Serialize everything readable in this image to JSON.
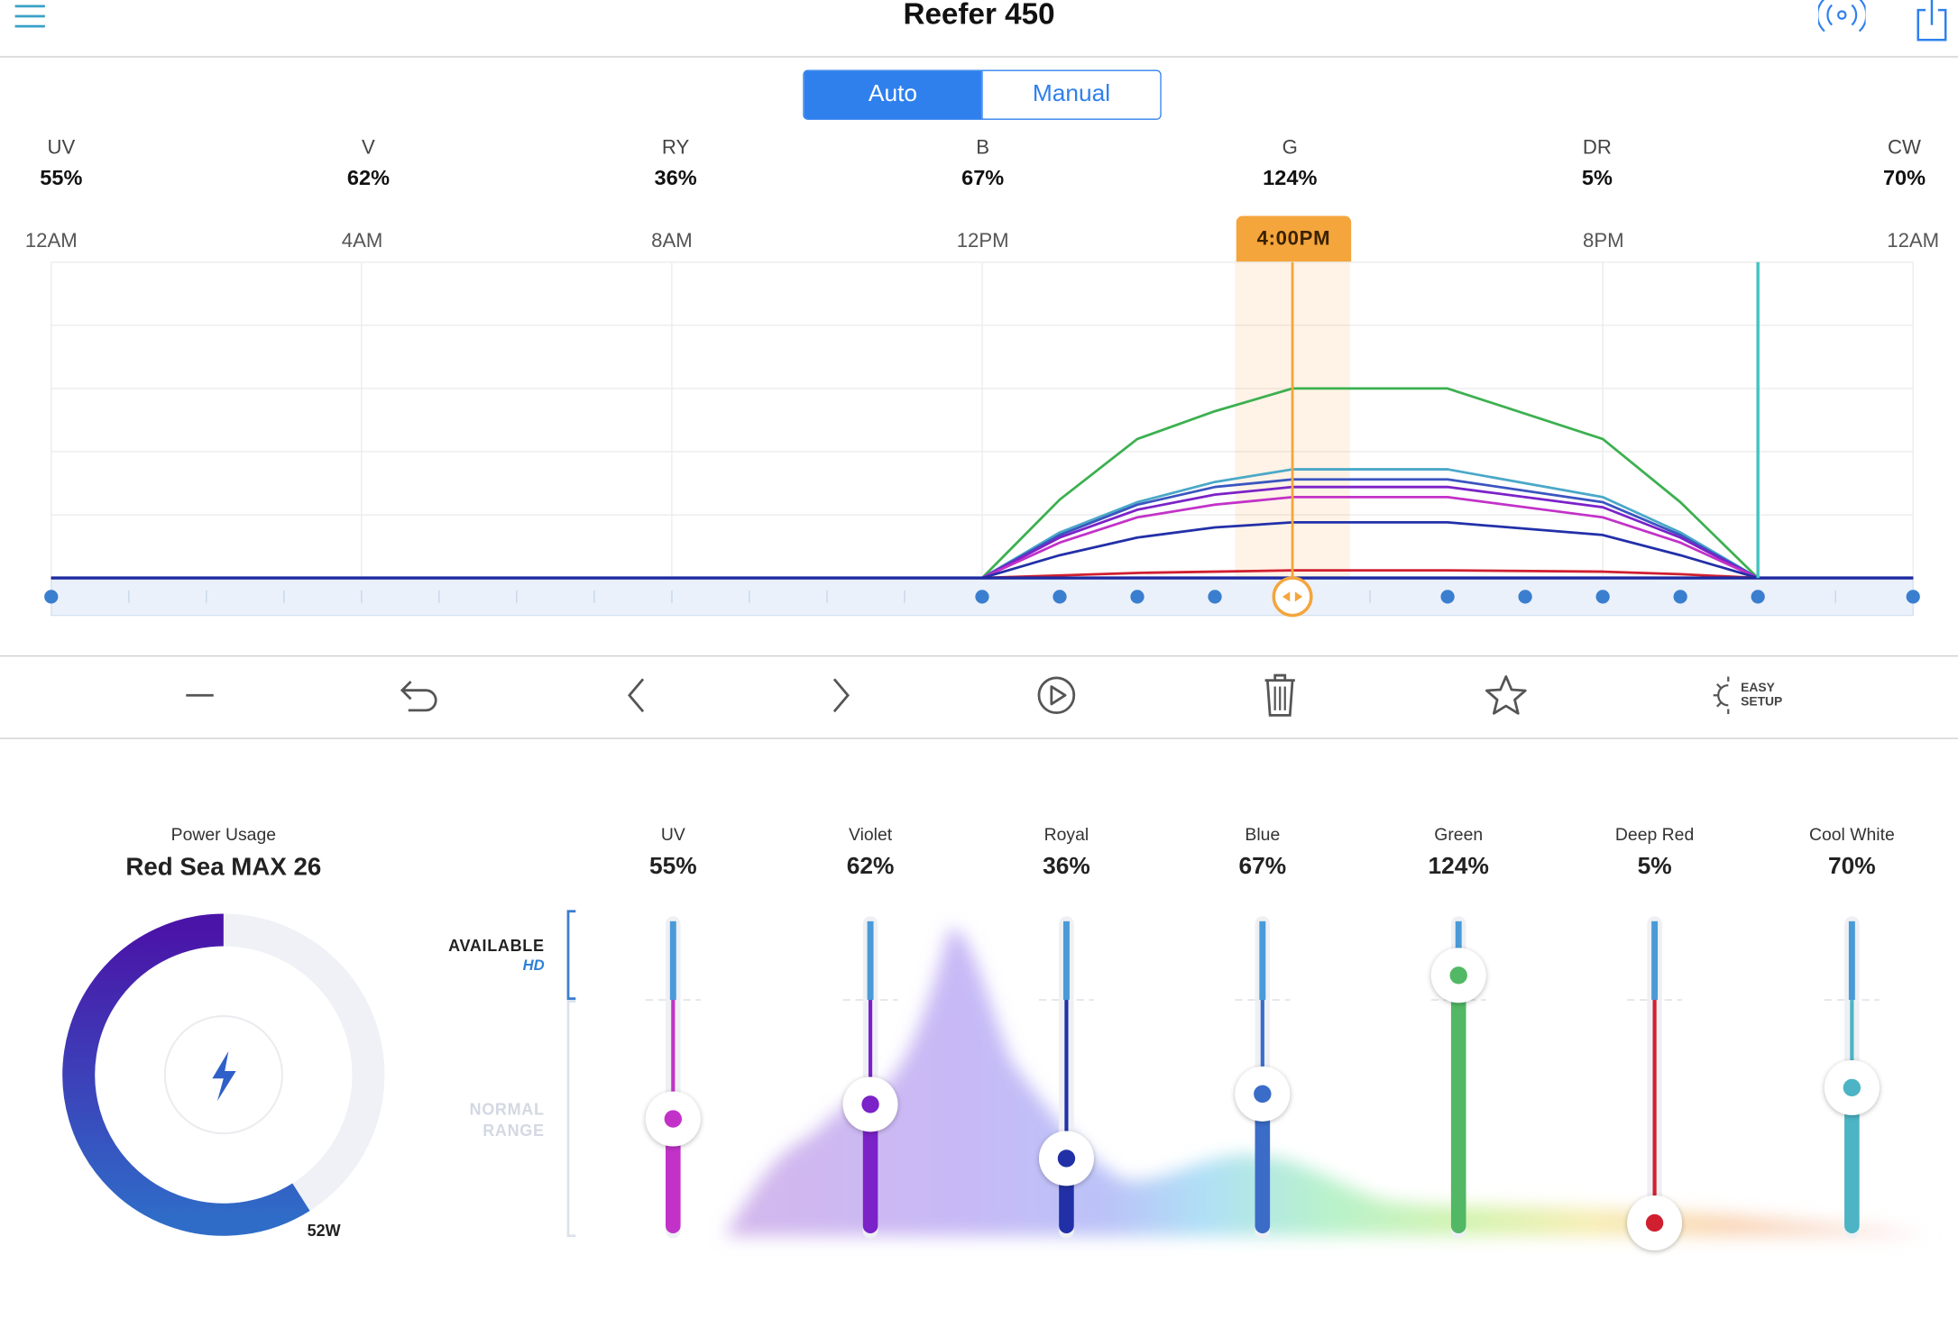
{
  "header": {
    "title": "Reefer 450",
    "menu_icon": "hamburger-icon",
    "connect_icon": "wireless-signal-icon",
    "share_icon": "share-icon"
  },
  "mode": {
    "auto_label": "Auto",
    "manual_label": "Manual",
    "selected": "Auto"
  },
  "channels_summary": [
    {
      "name": "UV",
      "value": "55%"
    },
    {
      "name": "V",
      "value": "62%"
    },
    {
      "name": "RY",
      "value": "36%"
    },
    {
      "name": "B",
      "value": "67%"
    },
    {
      "name": "G",
      "value": "124%"
    },
    {
      "name": "DR",
      "value": "5%"
    },
    {
      "name": "CW",
      "value": "70%"
    }
  ],
  "schedule": {
    "time_labels": [
      "12AM",
      "4AM",
      "8AM",
      "12PM",
      "8PM",
      "12AM"
    ],
    "current_time": "4:00PM",
    "colors": {
      "cursor": "#f4a53c",
      "accent": "#2f80ed"
    }
  },
  "chart_data": {
    "type": "line",
    "x_unit": "hour",
    "xlim": [
      0,
      24
    ],
    "ylim": [
      0,
      250
    ],
    "x": [
      12,
      13,
      14,
      15,
      16,
      18,
      20,
      21,
      22
    ],
    "series": [
      {
        "color": "#3cb050",
        "values": [
          0,
          62,
          110,
          132,
          150,
          150,
          110,
          60,
          0
        ]
      },
      {
        "color": "#4aa8c8",
        "values": [
          0,
          36,
          60,
          76,
          86,
          86,
          64,
          36,
          0
        ]
      },
      {
        "color": "#3a55c0",
        "values": [
          0,
          34,
          58,
          72,
          78,
          78,
          60,
          34,
          0
        ]
      },
      {
        "color": "#7b22c8",
        "values": [
          0,
          32,
          54,
          66,
          72,
          72,
          56,
          32,
          0
        ]
      },
      {
        "color": "#c232c8",
        "values": [
          0,
          28,
          48,
          58,
          64,
          64,
          48,
          28,
          0
        ]
      },
      {
        "color": "#2230a8",
        "values": [
          0,
          18,
          32,
          40,
          44,
          44,
          34,
          18,
          0
        ]
      },
      {
        "color": "#d02030",
        "values": [
          0,
          2,
          4,
          5,
          6,
          6,
          5,
          3,
          0
        ]
      }
    ],
    "baseline_color": "#1e2aa0",
    "cursor_x": 16,
    "marker_x": 22,
    "control_points_x": [
      0,
      12,
      13,
      14,
      15,
      16,
      18,
      19,
      20,
      21,
      22,
      24
    ]
  },
  "toolbar": {
    "remove_icon": "minus-icon",
    "undo_icon": "undo-icon",
    "prev_icon": "chevron-left-icon",
    "next_icon": "chevron-right-icon",
    "play_icon": "play-circle-icon",
    "delete_icon": "trash-icon",
    "favorite_icon": "star-icon",
    "easy_setup_line1": "EASY",
    "easy_setup_line2": "SETUP"
  },
  "power": {
    "label": "Power Usage",
    "model": "Red Sea MAX 26",
    "watts": "52W",
    "fraction": 0.59,
    "icon": "lightning-bolt-icon"
  },
  "sliders_legend": {
    "available": "AVAILABLE",
    "hd": "HD",
    "normal_line1": "NORMAL",
    "normal_line2": "RANGE"
  },
  "sliders": [
    {
      "name": "UV",
      "value": "55%",
      "color": "#c232c8",
      "level": 0.55
    },
    {
      "name": "Violet",
      "value": "62%",
      "color": "#7b22c8",
      "level": 0.62
    },
    {
      "name": "Royal",
      "value": "36%",
      "color": "#2230a8",
      "level": 0.36
    },
    {
      "name": "Blue",
      "value": "67%",
      "color": "#3a6cc8",
      "level": 0.67
    },
    {
      "name": "Green",
      "value": "124%",
      "color": "#52b865",
      "level": 1.24
    },
    {
      "name": "Deep Red",
      "value": "5%",
      "color": "#d02030",
      "level": 0.05
    },
    {
      "name": "Cool White",
      "value": "70%",
      "color": "#4cb4c4",
      "level": 0.7
    }
  ]
}
